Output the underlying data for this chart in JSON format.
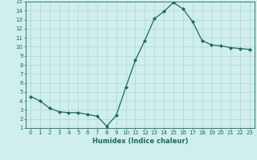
{
  "x": [
    0,
    1,
    2,
    3,
    4,
    5,
    6,
    7,
    8,
    9,
    10,
    11,
    12,
    13,
    14,
    15,
    16,
    17,
    18,
    19,
    20,
    21,
    22,
    23
  ],
  "y": [
    4.5,
    4.0,
    3.2,
    2.8,
    2.7,
    2.7,
    2.5,
    2.3,
    1.2,
    2.4,
    5.5,
    8.5,
    10.7,
    13.1,
    13.9,
    14.9,
    14.2,
    12.8,
    10.7,
    10.2,
    10.1,
    9.9,
    9.8,
    9.7
  ],
  "line_color": "#1a6b5e",
  "marker": "D",
  "marker_size": 2.0,
  "bg_color": "#d0eeeb",
  "grid_color": "#b0d8d4",
  "xlabel": "Humidex (Indice chaleur)",
  "xlim": [
    -0.5,
    23.5
  ],
  "ylim": [
    1,
    15
  ],
  "yticks": [
    1,
    2,
    3,
    4,
    5,
    6,
    7,
    8,
    9,
    10,
    11,
    12,
    13,
    14,
    15
  ],
  "xticks": [
    0,
    1,
    2,
    3,
    4,
    5,
    6,
    7,
    8,
    9,
    10,
    11,
    12,
    13,
    14,
    15,
    16,
    17,
    18,
    19,
    20,
    21,
    22,
    23
  ],
  "tick_fontsize": 5.0,
  "xlabel_fontsize": 6.0,
  "linewidth": 0.9
}
